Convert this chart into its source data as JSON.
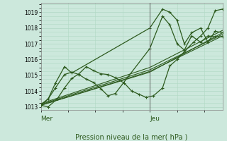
{
  "xlabel": "Pression niveau de la mer( hPa )",
  "bg_color": "#cce8dc",
  "grid_color": "#b0d8c4",
  "line_color": "#2d5a1e",
  "ylim": [
    1012.8,
    1019.6
  ],
  "yticks": [
    1013,
    1014,
    1015,
    1016,
    1017,
    1018,
    1019
  ],
  "day_ticks": [
    0.0,
    0.6
  ],
  "day_labels": [
    "Mer",
    "Jeu"
  ],
  "jeu_vline": 0.6,
  "series": [
    {
      "x": [
        0.0,
        0.04,
        0.09,
        0.13,
        0.17,
        0.21,
        0.25,
        0.29,
        0.33,
        0.37,
        0.41,
        0.46,
        0.5,
        0.54,
        0.58,
        0.62,
        0.67,
        0.71,
        0.75,
        0.79,
        0.84,
        0.88,
        0.92,
        0.96,
        1.0
      ],
      "y": [
        1013.1,
        1013.0,
        1013.5,
        1014.2,
        1014.8,
        1015.1,
        1015.55,
        1015.3,
        1015.1,
        1015.05,
        1014.85,
        1014.5,
        1014.0,
        1013.8,
        1013.6,
        1013.7,
        1014.2,
        1015.6,
        1016.0,
        1016.5,
        1017.1,
        1017.5,
        1018.0,
        1019.1,
        1019.2
      ],
      "has_markers": true
    },
    {
      "x": [
        0.0,
        0.6,
        1.0
      ],
      "y": [
        1013.1,
        1015.2,
        1017.7
      ],
      "has_markers": false
    },
    {
      "x": [
        0.0,
        0.6,
        1.0
      ],
      "y": [
        1013.2,
        1015.5,
        1017.85
      ],
      "has_markers": false
    },
    {
      "x": [
        0.0,
        0.6,
        1.0
      ],
      "y": [
        1013.15,
        1015.35,
        1017.6
      ],
      "has_markers": false
    },
    {
      "x": [
        0.0,
        0.6,
        1.0
      ],
      "y": [
        1013.1,
        1015.25,
        1017.5
      ],
      "has_markers": false
    },
    {
      "x": [
        0.0,
        0.04,
        0.08,
        0.13,
        0.17,
        0.6,
        0.67,
        0.71,
        0.75,
        0.79,
        0.83,
        0.88,
        0.92,
        0.96,
        1.0
      ],
      "y": [
        1013.1,
        1013.5,
        1014.5,
        1015.55,
        1015.15,
        1018.0,
        1019.2,
        1019.0,
        1018.5,
        1017.0,
        1017.7,
        1018.0,
        1017.1,
        1017.8,
        1017.7
      ],
      "has_markers": true
    },
    {
      "x": [
        0.0,
        0.04,
        0.08,
        0.13,
        0.17,
        0.21,
        0.25,
        0.29,
        0.33,
        0.37,
        0.41,
        0.6,
        0.67,
        0.71,
        0.75,
        0.79,
        0.83,
        0.88,
        0.92,
        0.96,
        1.0
      ],
      "y": [
        1013.15,
        1013.5,
        1014.2,
        1015.05,
        1015.2,
        1015.05,
        1014.75,
        1014.55,
        1014.15,
        1013.7,
        1013.85,
        1016.7,
        1018.75,
        1018.2,
        1017.0,
        1016.6,
        1017.5,
        1017.1,
        1017.5,
        1017.45,
        1017.45
      ],
      "has_markers": true
    }
  ]
}
